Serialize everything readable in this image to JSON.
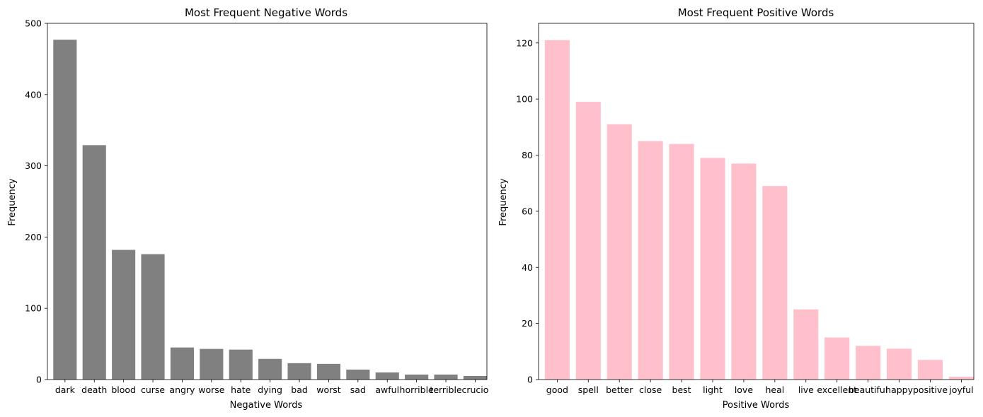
{
  "chart_data": [
    {
      "type": "bar",
      "title": "Most Frequent Negative Words",
      "xlabel": "Negative Words",
      "ylabel": "Frequency",
      "categories": [
        "dark",
        "death",
        "blood",
        "curse",
        "angry",
        "worse",
        "hate",
        "dying",
        "bad",
        "worst",
        "sad",
        "awful",
        "horrible",
        "terrible",
        "crucio"
      ],
      "values": [
        477,
        329,
        182,
        176,
        45,
        43,
        42,
        29,
        23,
        22,
        14,
        10,
        7,
        7,
        5
      ],
      "ylim": [
        0,
        500
      ],
      "yticks": [
        0,
        100,
        200,
        300,
        400,
        500
      ],
      "color": "#808080",
      "grid": false
    },
    {
      "type": "bar",
      "title": "Most Frequent Positive Words",
      "xlabel": "Positive Words",
      "ylabel": "Frequency",
      "categories": [
        "good",
        "spell",
        "better",
        "close",
        "best",
        "light",
        "love",
        "heal",
        "live",
        "excellent",
        "beautiful",
        "happy",
        "positive",
        "joyful"
      ],
      "values": [
        121,
        99,
        91,
        85,
        84,
        79,
        77,
        69,
        25,
        15,
        12,
        11,
        7,
        1
      ],
      "ylim": [
        0,
        127
      ],
      "yticks": [
        0,
        20,
        40,
        60,
        80,
        100,
        120
      ],
      "color": "#ffc0cb",
      "grid": false
    }
  ]
}
